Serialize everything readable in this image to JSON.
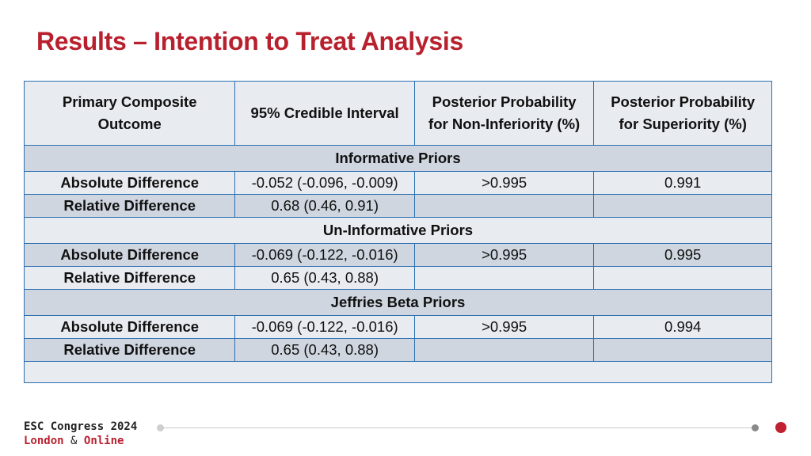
{
  "title": "Results – Intention to Treat Analysis",
  "table": {
    "headers": [
      "Primary Composite Outcome",
      "95% Credible Interval",
      "Posterior Probability for Non-Inferiority (%)",
      "Posterior Probability for Superiority (%)"
    ],
    "header_lines": {
      "h1a": "Primary Composite",
      "h1b": "Outcome",
      "h2": "95% Credible Interval",
      "h3a": "Posterior Probability",
      "h3b": "for Non-Inferiority (%)",
      "h4a": "Posterior Probability",
      "h4b": "for Superiority (%)"
    },
    "sections": [
      {
        "label": "Informative Priors",
        "rows": [
          [
            "Absolute Difference",
            "-0.052 (-0.096, -0.009)",
            ">0.995",
            "0.991"
          ],
          [
            "Relative Difference",
            "0.68 (0.46, 0.91)",
            "",
            ""
          ]
        ]
      },
      {
        "label": "Un-Informative Priors",
        "rows": [
          [
            "Absolute Difference",
            "-0.069 (-0.122, -0.016)",
            ">0.995",
            "0.995"
          ],
          [
            "Relative Difference",
            "0.65 (0.43, 0.88)",
            "",
            ""
          ]
        ]
      },
      {
        "label": "Jeffries Beta Priors",
        "rows": [
          [
            "Absolute Difference",
            "-0.069 (-0.122, -0.016)",
            ">0.995",
            "0.994"
          ],
          [
            "Relative Difference",
            "0.65 (0.43, 0.88)",
            "",
            ""
          ]
        ]
      }
    ]
  },
  "footer": {
    "line1": "ESC Congress 2024",
    "city": "London",
    "amp": "&",
    "online": "Online"
  },
  "colors": {
    "title": "#b8202e",
    "border": "#2a6fb0",
    "row_light": "#e8ebf0",
    "row_dark": "#cfd6e0",
    "accent_dot": "#c0202f"
  }
}
